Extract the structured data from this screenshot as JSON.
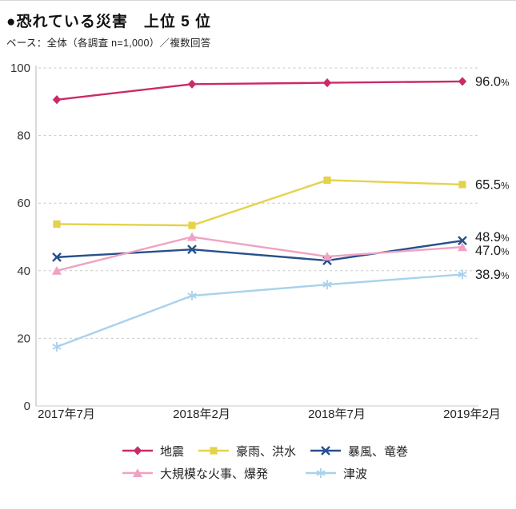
{
  "page": {
    "title": "●恐れている災害　上位 5 位",
    "subtitle": "ベース：全体（各調査 n=1,000）／複数回答"
  },
  "chart_data": {
    "type": "line",
    "x": [
      "2017年7月",
      "2018年2月",
      "2018年7月",
      "2019年2月"
    ],
    "ylim": [
      0,
      100
    ],
    "yticks": [
      0,
      20,
      40,
      60,
      80,
      100
    ],
    "grid": "horizontal-dashed",
    "legend_position": "bottom",
    "legend_rows": [
      [
        0,
        1,
        2
      ],
      [
        3,
        4
      ]
    ],
    "series": [
      {
        "name": "地震",
        "color": "#cb2a68",
        "marker": "diamond",
        "values": [
          90.6,
          95.2,
          95.6,
          96.0
        ],
        "end_label": "96.0%"
      },
      {
        "name": "豪雨、洪水",
        "color": "#e5d24b",
        "marker": "square",
        "values": [
          53.8,
          53.4,
          66.8,
          65.5
        ],
        "end_label": "65.5%"
      },
      {
        "name": "暴風、竜巻",
        "color": "#27508c",
        "marker": "x",
        "values": [
          44.0,
          46.3,
          43.0,
          48.9
        ],
        "end_label": "48.9%"
      },
      {
        "name": "大規模な火事、爆発",
        "color": "#efa2c3",
        "marker": "triangle",
        "values": [
          40.0,
          50.0,
          44.2,
          47.0
        ],
        "end_label": "47.0%"
      },
      {
        "name": "津波",
        "color": "#a8d2ec",
        "marker": "asterisk",
        "values": [
          17.5,
          32.6,
          35.9,
          38.9
        ],
        "end_label": "38.9%"
      }
    ],
    "axis_color": "#b5b5b5",
    "grid_color": "#c8c8c8",
    "tick_label_color": "#333333",
    "value_label_color": "#1a1a1a"
  }
}
